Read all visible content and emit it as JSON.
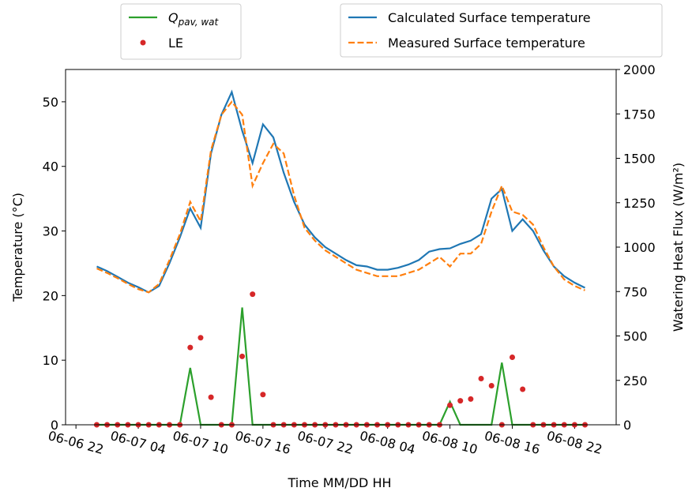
{
  "chart_data": {
    "type": "line",
    "xlabel": "Time MM/DD HH",
    "ylabel": "Temperature (°C)",
    "y2label": "Watering Heat Flux (W/m²)",
    "x": [
      "06-07 00",
      "06-07 01",
      "06-07 02",
      "06-07 03",
      "06-07 04",
      "06-07 05",
      "06-07 06",
      "06-07 07",
      "06-07 08",
      "06-07 09",
      "06-07 10",
      "06-07 11",
      "06-07 12",
      "06-07 13",
      "06-07 14",
      "06-07 15",
      "06-07 16",
      "06-07 17",
      "06-07 18",
      "06-07 19",
      "06-07 20",
      "06-07 21",
      "06-07 22",
      "06-07 23",
      "06-08 00",
      "06-08 01",
      "06-08 02",
      "06-08 03",
      "06-08 04",
      "06-08 05",
      "06-08 06",
      "06-08 07",
      "06-08 08",
      "06-08 09",
      "06-08 10",
      "06-08 11",
      "06-08 12",
      "06-08 13",
      "06-08 14",
      "06-08 15",
      "06-08 16",
      "06-08 17",
      "06-08 18",
      "06-08 19",
      "06-08 20",
      "06-08 21",
      "06-08 22",
      "06-08 23"
    ],
    "series": [
      {
        "name": "Calculated Surface temperature",
        "color": "#1f77b4",
        "axis": "y",
        "dash": false,
        "values": [
          24.5,
          23.8,
          22.9,
          22.0,
          21.3,
          20.5,
          21.5,
          25,
          29,
          33.5,
          30.5,
          42,
          48,
          51.5,
          45.5,
          40.5,
          46.5,
          44.5,
          39,
          34.5,
          31,
          29,
          27.5,
          26.5,
          25.5,
          24.7,
          24.5,
          24,
          24,
          24.3,
          24.8,
          25.5,
          26.8,
          27.2,
          27.3,
          28,
          28.5,
          29.5,
          35,
          36.5,
          30,
          31.8,
          30,
          27,
          24.5,
          23,
          22,
          21.2
        ]
      },
      {
        "name": "Measured Surface temperature",
        "color": "#ff7f0e",
        "axis": "y",
        "dash": true,
        "values": [
          24.2,
          23.5,
          22.7,
          21.8,
          21.0,
          20.5,
          21.8,
          25.5,
          29.5,
          34.5,
          31.5,
          42.5,
          48,
          50,
          48,
          37,
          40.5,
          43.5,
          42,
          35.5,
          30.5,
          28.5,
          27,
          26,
          25,
          24,
          23.5,
          23,
          23,
          23,
          23.5,
          24,
          25,
          26,
          24.5,
          26.5,
          26.5,
          28,
          33,
          37,
          33,
          32.5,
          31,
          27.5,
          24.5,
          22.5,
          21.5,
          20.8
        ]
      },
      {
        "name": "Qpav, wat",
        "color": "#2ca02c",
        "axis": "y2",
        "dash": false,
        "values": [
          0,
          0,
          0,
          0,
          0,
          0,
          0,
          0,
          0,
          320,
          0,
          0,
          0,
          0,
          660,
          0,
          0,
          0,
          0,
          0,
          0,
          0,
          0,
          0,
          0,
          0,
          0,
          0,
          0,
          0,
          0,
          0,
          0,
          0,
          130,
          0,
          0,
          0,
          0,
          350,
          0,
          0,
          0,
          0,
          0,
          0,
          0,
          0
        ]
      },
      {
        "name": "LE",
        "color": "#d62728",
        "axis": "y2",
        "marker": "dot",
        "values": [
          0,
          0,
          0,
          0,
          0,
          0,
          0,
          0,
          0,
          435,
          490,
          155,
          0,
          0,
          385,
          735,
          170,
          0,
          0,
          0,
          0,
          0,
          0,
          0,
          0,
          0,
          0,
          0,
          0,
          0,
          0,
          0,
          0,
          0,
          110,
          135,
          145,
          260,
          220,
          0,
          380,
          200,
          0,
          0,
          0,
          0,
          0,
          0
        ]
      }
    ],
    "xlim": [
      "06-06 21",
      "06-09 02"
    ],
    "xticks": [
      "06-06 22",
      "06-07 04",
      "06-07 10",
      "06-07 16",
      "06-07 22",
      "06-08 04",
      "06-08 10",
      "06-08 16",
      "06-08 22"
    ],
    "ylim": [
      0,
      55
    ],
    "yticks": [
      0,
      10,
      20,
      30,
      40,
      50
    ],
    "y2lim": [
      0,
      2000
    ],
    "y2ticks": [
      0,
      250,
      500,
      750,
      1000,
      1250,
      1500,
      1750,
      2000
    ]
  }
}
